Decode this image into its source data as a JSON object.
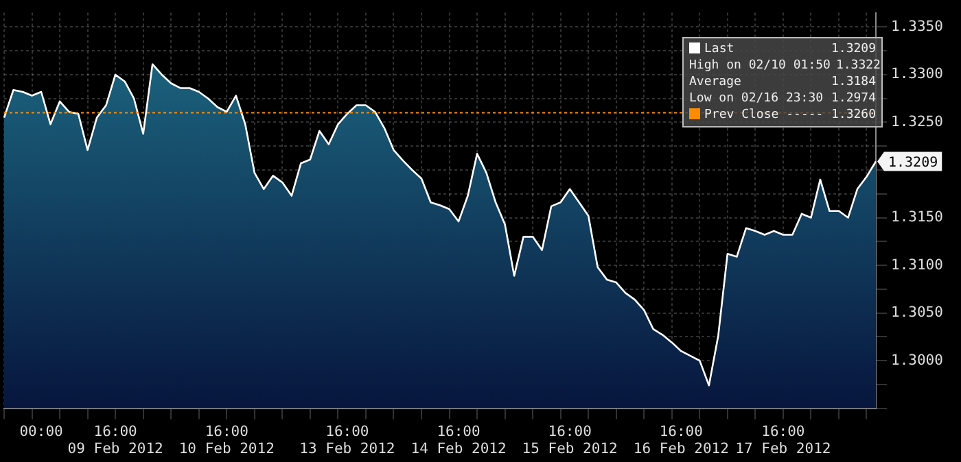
{
  "chart_data": {
    "type": "area",
    "categories": [
      null,
      null,
      null,
      null,
      "00:00",
      null,
      null,
      null,
      null,
      null,
      null,
      null,
      "16:00 09 Feb 2012",
      null,
      null,
      null,
      null,
      null,
      null,
      null,
      null,
      null,
      null,
      null,
      "16:00 10 Feb 2012",
      null,
      null,
      null,
      null,
      null,
      null,
      null,
      null,
      null,
      null,
      null,
      null,
      "16:00 13 Feb 2012",
      null,
      null,
      null,
      null,
      null,
      null,
      null,
      null,
      null,
      null,
      null,
      "16:00 14 Feb 2012",
      null,
      null,
      null,
      null,
      null,
      null,
      null,
      null,
      null,
      null,
      null,
      "16:00 15 Feb 2012",
      null,
      null,
      null,
      null,
      null,
      null,
      null,
      null,
      null,
      null,
      null,
      "16:00 16 Feb 2012",
      null,
      null,
      null,
      null,
      null,
      null,
      null,
      null,
      null,
      null,
      "16:00 17 Feb 2012",
      null,
      null,
      null,
      null,
      null,
      null,
      null,
      null,
      null,
      null
    ],
    "series": [
      {
        "color": "#1f7088",
        "values": [
          1.3255,
          1.3284,
          1.3282,
          1.3278,
          1.3282,
          1.3248,
          1.3272,
          1.3261,
          1.3259,
          1.3221,
          1.3255,
          1.3268,
          1.33,
          1.3293,
          1.3275,
          1.3238,
          1.3311,
          1.33,
          1.3291,
          1.3286,
          1.3286,
          1.3282,
          1.3275,
          1.3266,
          1.3261,
          1.3278,
          1.3248,
          1.3197,
          1.318,
          1.3194,
          1.3187,
          1.3173,
          1.3207,
          1.3211,
          1.3241,
          1.3227,
          1.3248,
          1.3259,
          1.3268,
          1.3268,
          1.3261,
          1.3244,
          1.3221,
          1.321,
          1.32,
          1.3191,
          1.3166,
          1.3163,
          1.3159,
          1.3146,
          1.3173,
          1.3217,
          1.3197,
          1.3166,
          1.3143,
          1.3089,
          1.313,
          1.313,
          1.3116,
          1.3162,
          1.3166,
          1.318,
          1.3166,
          1.3152,
          1.3098,
          1.3085,
          1.3082,
          1.3071,
          1.3064,
          1.3053,
          1.3033,
          1.3027,
          1.3019,
          1.301,
          1.3005,
          1.3,
          1.2974,
          1.3026,
          1.3112,
          1.3109,
          1.3139,
          1.3136,
          1.3132,
          1.3136,
          1.3132,
          1.3132,
          1.3154,
          1.315,
          1.319,
          1.3157,
          1.3157,
          1.315,
          1.318,
          1.3193,
          1.3209
        ]
      }
    ],
    "ylim": [
      1.295,
      1.3365
    ],
    "yticks": [
      {
        "value": 1.295,
        "label": null
      },
      {
        "value": 1.2975,
        "label": null
      },
      {
        "value": 1.3,
        "label": "1.3000"
      },
      {
        "value": 1.3025,
        "label": null
      },
      {
        "value": 1.305,
        "label": "1.3050"
      },
      {
        "value": 1.3075,
        "label": null
      },
      {
        "value": 1.31,
        "label": "1.3100"
      },
      {
        "value": 1.3125,
        "label": null
      },
      {
        "value": 1.315,
        "label": "1.3150"
      },
      {
        "value": 1.3175,
        "label": null
      },
      {
        "value": 1.32,
        "label": null
      },
      {
        "value": 1.3225,
        "label": null
      },
      {
        "value": 1.325,
        "label": "1.3250"
      },
      {
        "value": 1.3275,
        "label": null
      },
      {
        "value": 1.33,
        "label": "1.3300"
      },
      {
        "value": 1.3325,
        "label": null
      },
      {
        "value": 1.335,
        "label": "1.3350"
      }
    ],
    "grid": true,
    "ref_lines": [
      {
        "axis": "y",
        "value": 1.326,
        "color": "#ff8c00",
        "line_style": "dotted"
      }
    ],
    "annotations": [
      "Last 1.3209",
      "High on 02/10 01:50 1.3322",
      "Average 1.3184",
      "Low on 02/16 23:30 1.2974",
      "Prev Close ----- 1.3260",
      "1.3209"
    ]
  }
}
